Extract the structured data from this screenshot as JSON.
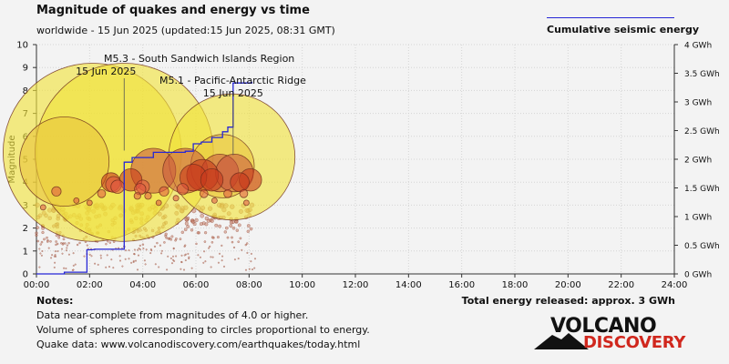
{
  "header": {
    "title": "Magnitude of quakes and energy vs time",
    "subtitle": "worldwide - 15 Jun 2025 (updated:15 Jun 2025, 08:31 GMT)"
  },
  "legend": {
    "energy_label": "Cumulative seismic energy",
    "energy_color": "#2626d6"
  },
  "notes": {
    "heading": "Notes:",
    "lines": [
      "Data near-complete from magnitudes of 4.0 or higher.",
      "Volume of spheres corresponding to circles proportional to energy.",
      "Quake data: www.volcanodiscovery.com/earthquakes/today.html"
    ],
    "total_energy": "Total energy released: approx. 3 GWh"
  },
  "logo": {
    "word1": "VOLCANO",
    "word2": "DISCOVERY"
  },
  "chart_data": {
    "type": "scatter",
    "ylabel": "Magnitude",
    "y2label": "",
    "xlim": [
      0,
      24
    ],
    "ylim": [
      0,
      10
    ],
    "y2lim": [
      0,
      4
    ],
    "x_ticks": [
      "00:00",
      "02:00",
      "04:00",
      "06:00",
      "08:00",
      "10:00",
      "12:00",
      "14:00",
      "16:00",
      "18:00",
      "20:00",
      "22:00",
      "24:00"
    ],
    "y_ticks": [
      "0",
      "1",
      "2",
      "3",
      "4",
      "5",
      "6",
      "7",
      "8",
      "9",
      "10"
    ],
    "y2_ticks": [
      "0 GWh",
      "0.5 GWh",
      "1 GWh",
      "1.5 GWh",
      "2 GWh",
      "2.5 GWh",
      "3 GWh",
      "3.5 GWh",
      "4 GWh"
    ],
    "legend_position": "top-right",
    "annotations": [
      {
        "label": "M5.3 - South Sandwich Islands Region",
        "date": "15 Jun 2025",
        "time_h": 3.3,
        "mag": 5.3
      },
      {
        "label": "M5.1 - Pacific-Antarctic Ridge",
        "date": "15 Jun 2025",
        "time_h": 7.4,
        "mag": 5.1
      }
    ],
    "quakes_large": [
      {
        "t": 1.05,
        "m": 4.9
      },
      {
        "t": 2.1,
        "m": 5.3
      },
      {
        "t": 3.3,
        "m": 5.3
      },
      {
        "t": 4.4,
        "m": 4.5
      },
      {
        "t": 5.6,
        "m": 4.5
      },
      {
        "t": 6.25,
        "m": 4.3
      },
      {
        "t": 6.9,
        "m": 4.4
      },
      {
        "t": 7.0,
        "m": 4.7
      },
      {
        "t": 7.35,
        "m": 5.1
      },
      {
        "t": 7.45,
        "m": 4.4
      },
      {
        "t": 8.05,
        "m": 4.1
      },
      {
        "t": 7.65,
        "m": 4.0
      },
      {
        "t": 3.55,
        "m": 4.1
      },
      {
        "t": 5.9,
        "m": 4.2
      },
      {
        "t": 6.6,
        "m": 4.1
      },
      {
        "t": 2.9,
        "m": 3.9
      },
      {
        "t": 3.9,
        "m": 3.7
      },
      {
        "t": 2.8,
        "m": 4.0
      },
      {
        "t": 3.05,
        "m": 3.8
      },
      {
        "t": 4.0,
        "m": 3.8
      },
      {
        "t": 0.75,
        "m": 3.6
      },
      {
        "t": 4.8,
        "m": 3.6
      },
      {
        "t": 5.5,
        "m": 3.7
      },
      {
        "t": 6.3,
        "m": 3.5
      },
      {
        "t": 7.2,
        "m": 3.5
      },
      {
        "t": 7.8,
        "m": 3.5
      },
      {
        "t": 2.45,
        "m": 3.5
      },
      {
        "t": 3.8,
        "m": 3.4
      },
      {
        "t": 4.2,
        "m": 3.4
      },
      {
        "t": 5.25,
        "m": 3.3
      },
      {
        "t": 6.7,
        "m": 3.2
      },
      {
        "t": 7.9,
        "m": 3.1
      },
      {
        "t": 1.5,
        "m": 3.2
      },
      {
        "t": 2.0,
        "m": 3.1
      },
      {
        "t": 0.25,
        "m": 2.9
      },
      {
        "t": 4.6,
        "m": 3.1
      }
    ],
    "energy_steps": [
      {
        "t": 0.0,
        "gwh": 0.0
      },
      {
        "t": 1.05,
        "gwh": 0.0
      },
      {
        "t": 1.05,
        "gwh": 0.03
      },
      {
        "t": 1.9,
        "gwh": 0.03
      },
      {
        "t": 1.9,
        "gwh": 0.42
      },
      {
        "t": 2.1,
        "gwh": 0.42
      },
      {
        "t": 2.2,
        "gwh": 0.43
      },
      {
        "t": 3.3,
        "gwh": 0.43
      },
      {
        "t": 3.3,
        "gwh": 1.95
      },
      {
        "t": 3.6,
        "gwh": 1.95
      },
      {
        "t": 3.6,
        "gwh": 2.03
      },
      {
        "t": 4.4,
        "gwh": 2.03
      },
      {
        "t": 4.4,
        "gwh": 2.12
      },
      {
        "t": 5.6,
        "gwh": 2.12
      },
      {
        "t": 5.6,
        "gwh": 2.14
      },
      {
        "t": 5.9,
        "gwh": 2.14
      },
      {
        "t": 5.9,
        "gwh": 2.27
      },
      {
        "t": 6.2,
        "gwh": 2.27
      },
      {
        "t": 6.2,
        "gwh": 2.3
      },
      {
        "t": 6.6,
        "gwh": 2.3
      },
      {
        "t": 6.6,
        "gwh": 2.38
      },
      {
        "t": 7.0,
        "gwh": 2.38
      },
      {
        "t": 7.0,
        "gwh": 2.48
      },
      {
        "t": 7.2,
        "gwh": 2.48
      },
      {
        "t": 7.2,
        "gwh": 2.56
      },
      {
        "t": 7.4,
        "gwh": 2.56
      },
      {
        "t": 7.4,
        "gwh": 3.33
      },
      {
        "t": 8.1,
        "gwh": 3.33
      },
      {
        "t": 8.1,
        "gwh": 3.35
      }
    ]
  }
}
